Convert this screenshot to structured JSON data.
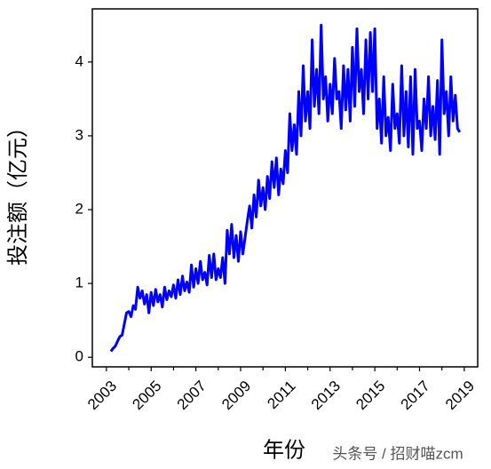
{
  "chart_data": {
    "type": "line",
    "xlabel": "年份",
    "ylabel": "投注额（亿元）",
    "watermark": "头条号 / 招财喵zcm",
    "xlim": [
      2002.37,
      2019.6
    ],
    "xticks": [
      2003,
      2005,
      2007,
      2009,
      2011,
      2013,
      2015,
      2017,
      2019
    ],
    "xminor_ticks": [
      2004,
      2006,
      2008,
      2010,
      2012,
      2014,
      2016,
      2018
    ],
    "ylim": [
      -0.13,
      4.72
    ],
    "yticks": [
      0,
      1,
      2,
      3,
      4
    ],
    "x": [
      2003.2,
      2003.3,
      2003.4,
      2003.5,
      2003.6,
      2003.7,
      2003.8,
      2003.9,
      2004.0,
      2004.1,
      2004.2,
      2004.3,
      2004.4,
      2004.5,
      2004.6,
      2004.7,
      2004.8,
      2004.9,
      2005.0,
      2005.1,
      2005.2,
      2005.3,
      2005.4,
      2005.5,
      2005.6,
      2005.7,
      2005.8,
      2005.9,
      2006.0,
      2006.1,
      2006.2,
      2006.3,
      2006.4,
      2006.5,
      2006.6,
      2006.7,
      2006.8,
      2006.9,
      2007.0,
      2007.1,
      2007.2,
      2007.3,
      2007.4,
      2007.5,
      2007.6,
      2007.7,
      2007.8,
      2007.9,
      2008.0,
      2008.1,
      2008.2,
      2008.3,
      2008.4,
      2008.5,
      2008.6,
      2008.7,
      2008.8,
      2008.9,
      2009.0,
      2009.1,
      2009.2,
      2009.3,
      2009.4,
      2009.5,
      2009.6,
      2009.7,
      2009.8,
      2009.9,
      2010.0,
      2010.1,
      2010.2,
      2010.3,
      2010.4,
      2010.5,
      2010.6,
      2010.7,
      2010.8,
      2010.9,
      2011.0,
      2011.1,
      2011.2,
      2011.3,
      2011.4,
      2011.5,
      2011.6,
      2011.7,
      2011.8,
      2011.9,
      2012.0,
      2012.1,
      2012.2,
      2012.3,
      2012.4,
      2012.5,
      2012.6,
      2012.7,
      2012.8,
      2012.9,
      2013.0,
      2013.1,
      2013.2,
      2013.3,
      2013.4,
      2013.5,
      2013.6,
      2013.7,
      2013.8,
      2013.9,
      2014.0,
      2014.1,
      2014.2,
      2014.3,
      2014.4,
      2014.5,
      2014.6,
      2014.7,
      2014.8,
      2014.9,
      2015.0,
      2015.1,
      2015.2,
      2015.3,
      2015.4,
      2015.5,
      2015.6,
      2015.7,
      2015.8,
      2015.9,
      2016.0,
      2016.1,
      2016.2,
      2016.3,
      2016.4,
      2016.5,
      2016.6,
      2016.7,
      2016.8,
      2016.9,
      2017.0,
      2017.1,
      2017.2,
      2017.3,
      2017.4,
      2017.5,
      2017.6,
      2017.7,
      2017.8,
      2017.9,
      2018.0,
      2018.1,
      2018.2,
      2018.3,
      2018.4,
      2018.5,
      2018.6,
      2018.7,
      2018.8
    ],
    "series": [
      {
        "color": "#0000ff",
        "values": [
          0.08,
          0.12,
          0.15,
          0.22,
          0.28,
          0.3,
          0.45,
          0.6,
          0.62,
          0.55,
          0.7,
          0.65,
          0.95,
          0.8,
          0.9,
          0.72,
          0.85,
          0.6,
          0.88,
          0.7,
          0.92,
          0.75,
          0.85,
          0.68,
          0.95,
          0.78,
          0.9,
          0.82,
          0.98,
          0.8,
          1.05,
          0.85,
          1.1,
          0.9,
          1.02,
          0.88,
          1.25,
          0.95,
          1.2,
          1.0,
          1.3,
          1.05,
          1.15,
          0.98,
          1.38,
          1.08,
          1.4,
          1.05,
          1.2,
          1.08,
          1.35,
          1.0,
          1.72,
          1.4,
          1.8,
          1.35,
          1.65,
          1.3,
          1.7,
          1.4,
          1.62,
          1.85,
          2.05,
          1.75,
          2.2,
          1.9,
          2.4,
          2.05,
          2.3,
          2.0,
          2.45,
          2.15,
          2.65,
          2.3,
          2.7,
          2.2,
          2.55,
          2.35,
          2.8,
          2.5,
          3.3,
          2.8,
          3.15,
          2.75,
          3.6,
          3.0,
          3.95,
          3.2,
          3.6,
          3.1,
          4.3,
          3.4,
          3.9,
          3.3,
          4.5,
          3.5,
          3.8,
          3.2,
          3.7,
          3.3,
          4.05,
          3.5,
          3.6,
          3.1,
          3.95,
          3.35,
          3.9,
          3.2,
          4.2,
          3.4,
          4.45,
          3.6,
          3.9,
          3.3,
          4.3,
          3.5,
          4.4,
          3.6,
          4.45,
          3.1,
          3.5,
          2.9,
          3.8,
          3.0,
          3.25,
          2.8,
          3.7,
          3.1,
          3.3,
          2.9,
          3.95,
          3.0,
          3.6,
          2.85,
          3.8,
          2.75,
          3.9,
          3.1,
          3.2,
          2.8,
          3.5,
          3.1,
          3.8,
          3.0,
          3.4,
          2.95,
          3.75,
          2.75,
          4.3,
          3.3,
          3.6,
          3.0,
          3.8,
          3.2,
          3.55,
          3.1,
          3.05
        ]
      }
    ]
  }
}
